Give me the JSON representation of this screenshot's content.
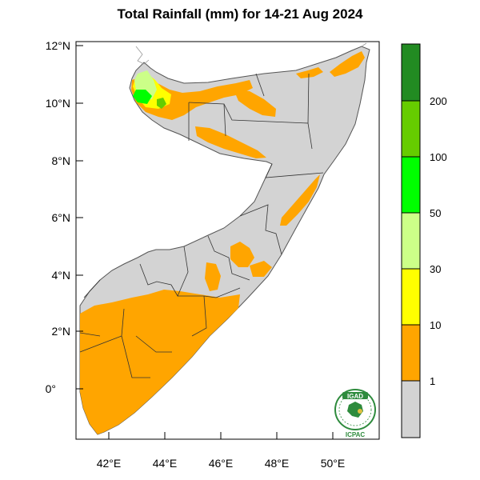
{
  "title": "Total Rainfall (mm) for 14-21 Aug 2024",
  "map": {
    "y_ticks": [
      "12°N",
      "10°N",
      "8°N",
      "6°N",
      "4°N",
      "2°N",
      "0°"
    ],
    "x_ticks": [
      "42°E",
      "44°E",
      "46°E",
      "48°E",
      "50°E"
    ],
    "lon_range": [
      41,
      51.3
    ],
    "lat_range": [
      -1.8,
      12.3
    ]
  },
  "legend": {
    "title": "",
    "classes": [
      {
        "label": "",
        "color": "#d3d3d3"
      },
      {
        "label": "1",
        "color": "#ffa500"
      },
      {
        "label": "10",
        "color": "#ffff00"
      },
      {
        "label": "30",
        "color": "#ccff88"
      },
      {
        "label": "50",
        "color": "#00ff00"
      },
      {
        "label": "100",
        "color": "#66cc00"
      },
      {
        "label": "200",
        "color": "#228b22"
      }
    ],
    "tick_labels": [
      "1",
      "10",
      "30",
      "50",
      "100",
      "200"
    ]
  },
  "logo": {
    "top_text": "IGAD",
    "bottom_text": "ICPAC"
  },
  "colors": {
    "land": "#d3d3d3",
    "orange": "#ffa500",
    "yellow": "#ffff00",
    "light_green": "#ccff88",
    "green": "#00ff00",
    "mid_green": "#66cc00",
    "dark_green": "#228b22"
  }
}
